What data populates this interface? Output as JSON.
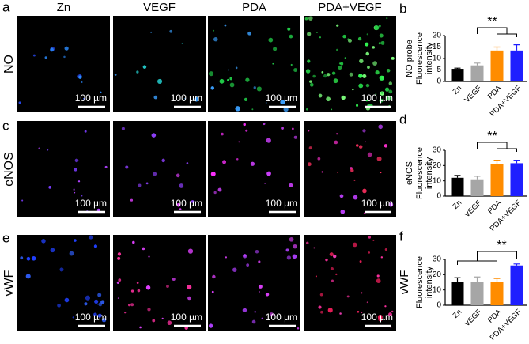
{
  "figure": {
    "panel_letters": [
      "a",
      "b",
      "c",
      "d",
      "e",
      "f"
    ],
    "columns": [
      "Zn",
      "VEGF",
      "PDA",
      "PDA+VEGF"
    ],
    "rows": [
      "NO",
      "eNOS",
      "vWF"
    ],
    "scale_bar": "100 µm"
  },
  "chart_data": [
    {
      "type": "bar",
      "ylabel": [
        "NO probe",
        "Fluorescence",
        "intensity"
      ],
      "categories": [
        "Zn",
        "VEGF",
        "PDA",
        "PDA+VEGF"
      ],
      "values": [
        5.5,
        7,
        13.5,
        13.5
      ],
      "errors": [
        0.3,
        1,
        1.5,
        2.5
      ],
      "colors": [
        "#000000",
        "#a6a6a6",
        "#ff8c00",
        "#1f1fff"
      ],
      "ylim": [
        0,
        20
      ],
      "yticks": [
        0,
        5,
        10,
        15,
        20
      ],
      "annotation": "**"
    },
    {
      "type": "bar",
      "ylabel": [
        "eNOS",
        "Fluorescence",
        "intensity"
      ],
      "categories": [
        "Zn",
        "VEGF",
        "PDA",
        "PDA+VEGF"
      ],
      "values": [
        12,
        11,
        21,
        21.5
      ],
      "errors": [
        1.5,
        2,
        2.5,
        2
      ],
      "colors": [
        "#000000",
        "#a6a6a6",
        "#ff8c00",
        "#1f1fff"
      ],
      "ylim": [
        0,
        30
      ],
      "yticks": [
        0,
        10,
        20,
        30
      ],
      "annotation": "**"
    },
    {
      "type": "bar",
      "ylabel": [
        "vWF",
        "Fluorescence",
        "intensity"
      ],
      "categories": [
        "Zn",
        "VEGF",
        "PDA",
        "PDA+VEGF"
      ],
      "values": [
        15.5,
        15.5,
        15,
        26
      ],
      "errors": [
        2.5,
        3,
        2.5,
        1
      ],
      "colors": [
        "#000000",
        "#a6a6a6",
        "#ff8c00",
        "#1f1fff"
      ],
      "ylim": [
        0,
        30
      ],
      "yticks": [
        0,
        10,
        20,
        30
      ],
      "annotation": "**"
    }
  ]
}
